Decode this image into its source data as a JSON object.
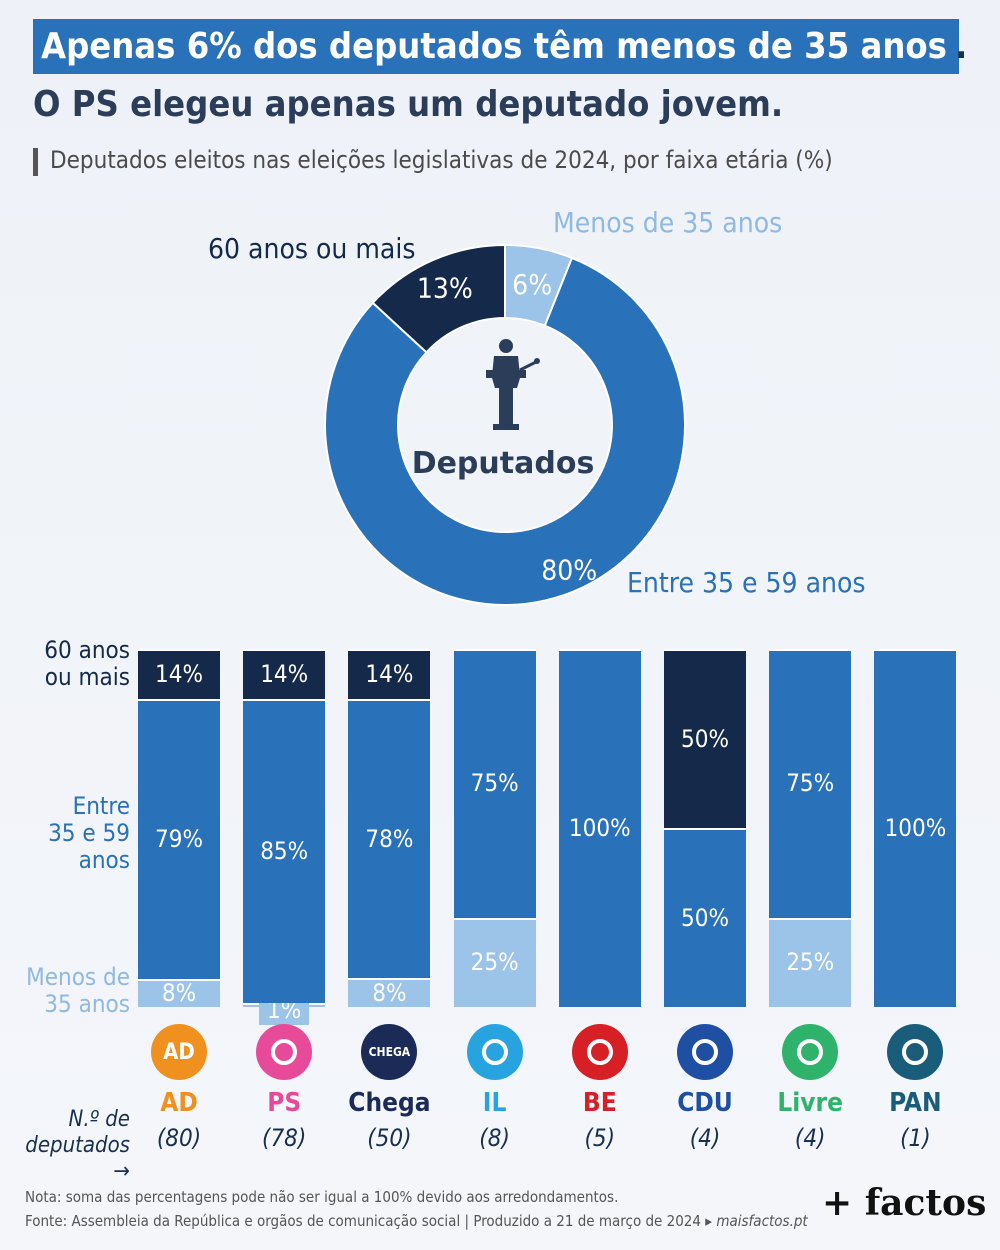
{
  "header": {
    "title_line1": "Apenas 6% dos deputados têm menos de 35 anos",
    "title_dot": ".",
    "title_line2": "O PS elegeu apenas um deputado jovem.",
    "subtitle": "Deputados eleitos nas eleições legislativas de 2024, por faixa etária (%)"
  },
  "donut": {
    "center_label": "Deputados",
    "icon": "podium-speaker-icon",
    "labels": {
      "under35": "Menos de 35 anos",
      "over60": "60 anos ou mais",
      "mid": "Entre 35 e 59 anos"
    },
    "slice_labels": {
      "under35": "6%",
      "over60": "13%",
      "mid": "80%"
    }
  },
  "bars": {
    "row_labels": {
      "over60": [
        "60 anos",
        "ou mais"
      ],
      "mid": [
        "Entre",
        "35 e 59",
        "anos"
      ],
      "under35": [
        "Menos de",
        "35 anos"
      ]
    },
    "count_label": [
      "N.º de",
      "deputados"
    ],
    "count_arrow": "→"
  },
  "colors": {
    "under35": "#9cc3e8",
    "mid": "#2971b8",
    "over60": "#15294a"
  },
  "chart_data": [
    {
      "type": "pie",
      "categories": [
        "Menos de 35 anos",
        "Entre 35 e 59 anos",
        "60 anos ou mais"
      ],
      "values": [
        6,
        80,
        13
      ],
      "center_label": "Deputados"
    },
    {
      "type": "bar",
      "stacked": true,
      "categories": [
        "AD",
        "PS",
        "Chega",
        "IL",
        "BE",
        "CDU",
        "Livre",
        "PAN"
      ],
      "counts": [
        "(80)",
        "(78)",
        "(50)",
        "(8)",
        "(5)",
        "(4)",
        "(4)",
        "(1)"
      ],
      "series": [
        {
          "name": "Menos de 35 anos",
          "values": [
            8,
            1,
            8,
            25,
            0,
            0,
            25,
            0
          ]
        },
        {
          "name": "Entre 35 e 59 anos",
          "values": [
            79,
            85,
            78,
            75,
            100,
            50,
            75,
            100
          ]
        },
        {
          "name": "60 anos ou mais",
          "values": [
            14,
            14,
            14,
            0,
            0,
            50,
            0,
            0
          ]
        }
      ],
      "value_labels": [
        [
          "8%",
          "79%",
          "14%"
        ],
        [
          "1%",
          "85%",
          "14%"
        ],
        [
          "8%",
          "78%",
          "14%"
        ],
        [
          "25%",
          "75%",
          ""
        ],
        [
          "",
          "100%",
          ""
        ],
        [
          "",
          "50%",
          "50%"
        ],
        [
          "25%",
          "75%",
          ""
        ],
        [
          "",
          "100%",
          ""
        ]
      ],
      "ylim": [
        0,
        100
      ]
    }
  ],
  "parties": [
    {
      "name": "AD",
      "count": "(80)",
      "color": "#f0901e",
      "logo_text": "AD",
      "icon": "ad-logo-icon"
    },
    {
      "name": "PS",
      "count": "(78)",
      "color": "#e84a9a",
      "logo_text": "",
      "icon": "fist-rose-logo-icon"
    },
    {
      "name": "Chega",
      "count": "(50)",
      "color": "#1b2a57",
      "logo_text": "CHEGA",
      "icon": "chega-logo-icon"
    },
    {
      "name": "IL",
      "count": "(8)",
      "color": "#27a4e0",
      "logo_text": "",
      "icon": "il-logo-icon"
    },
    {
      "name": "BE",
      "count": "(5)",
      "color": "#d71f26",
      "logo_text": "",
      "icon": "star-person-logo-icon"
    },
    {
      "name": "CDU",
      "count": "(4)",
      "color": "#1e4fa3",
      "logo_text": "",
      "icon": "hammer-sickle-logo-icon"
    },
    {
      "name": "Livre",
      "count": "(4)",
      "color": "#2fb36b",
      "logo_text": "",
      "icon": "poppy-logo-icon"
    },
    {
      "name": "PAN",
      "count": "(1)",
      "color": "#1a5d7a",
      "logo_text": "",
      "icon": "tree-logo-icon"
    }
  ],
  "footer": {
    "note": "Nota: soma das percentagens pode não ser igual a 100% devido aos arredondamentos.",
    "source": "Fonte: Assembleia da República e orgãos de comunicação social  |  Produzido a 21 de março de 2024",
    "source_arrow": "▸",
    "site": "maisfactos.pt",
    "brand": "+ factos"
  }
}
